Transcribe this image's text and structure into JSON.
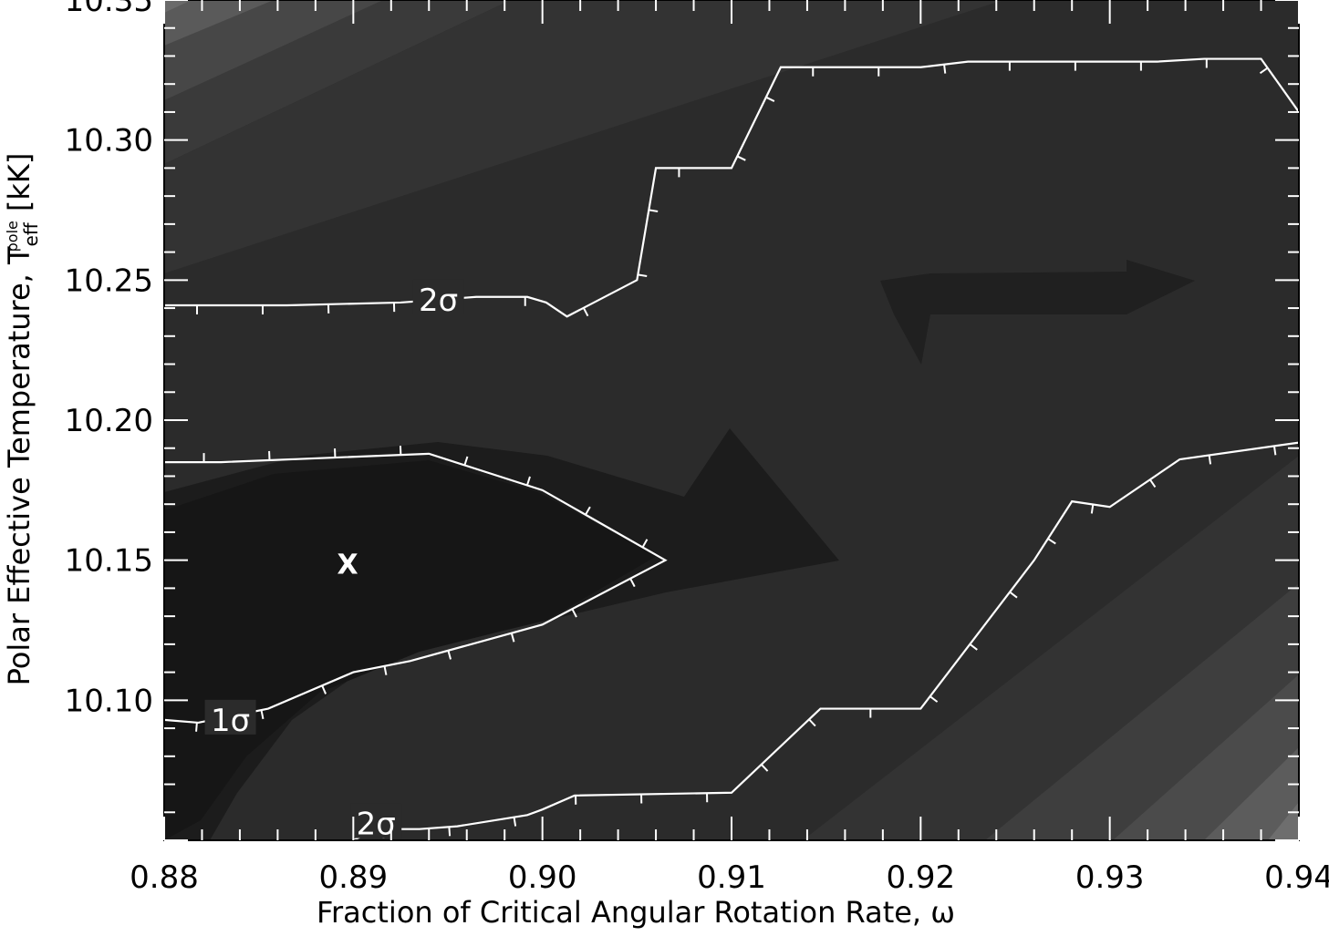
{
  "chart_data": {
    "type": "contour",
    "xlabel": "Fraction of Critical Angular Rotation Rate, ω",
    "ylabel": "Polar Effective Temperature, T_eff^pole [kK]",
    "ylabel_parts": {
      "main": "Polar Effective Temperature, T",
      "sub": "eff",
      "sup": "pole",
      "unit": "[kK]"
    },
    "xlim": [
      0.88,
      0.94
    ],
    "ylim": [
      10.05,
      10.35
    ],
    "x_ticks": [
      0.88,
      0.89,
      0.9,
      0.91,
      0.92,
      0.93,
      0.94
    ],
    "x_tick_labels": [
      "0.88",
      "0.89",
      "0.90",
      "0.91",
      "0.92",
      "0.93",
      "0.94"
    ],
    "y_ticks": [
      10.1,
      10.15,
      10.2,
      10.25,
      10.3,
      10.35
    ],
    "y_tick_labels": [
      "10.10",
      "10.15",
      "10.20",
      "10.25",
      "10.30",
      "10.35"
    ],
    "grid": false,
    "colormap": "grayscale (darker = lower chi-square)",
    "best_fit": {
      "label": "X",
      "x": 0.8897,
      "y": 10.149
    },
    "contours": [
      {
        "name": "1σ",
        "label": "1σ",
        "label_at": [
          0.8835,
          10.093
        ],
        "points": [
          [
            0.88,
            10.093
          ],
          [
            0.8818,
            10.092
          ],
          [
            0.8855,
            10.097
          ],
          [
            0.89,
            10.11
          ],
          [
            0.893,
            10.114
          ],
          [
            0.9,
            10.127
          ],
          [
            0.9065,
            10.15
          ],
          [
            0.9,
            10.175
          ],
          [
            0.894,
            10.188
          ],
          [
            0.883,
            10.185
          ],
          [
            0.88,
            10.185
          ]
        ]
      },
      {
        "name": "2σ upper",
        "label": "2σ",
        "label_at": [
          0.8945,
          10.243
        ],
        "points": [
          [
            0.88,
            10.241
          ],
          [
            0.8865,
            10.241
          ],
          [
            0.8925,
            10.242
          ],
          [
            0.8965,
            10.244
          ],
          [
            0.8992,
            10.244
          ],
          [
            0.9002,
            10.242
          ],
          [
            0.9013,
            10.237
          ],
          [
            0.905,
            10.25
          ],
          [
            0.906,
            10.29
          ],
          [
            0.91,
            10.29
          ],
          [
            0.9126,
            10.326
          ],
          [
            0.92,
            10.326
          ],
          [
            0.9225,
            10.328
          ],
          [
            0.9325,
            10.328
          ],
          [
            0.935,
            10.329
          ],
          [
            0.938,
            10.329
          ],
          [
            0.94,
            10.31
          ]
        ]
      },
      {
        "name": "2σ lower",
        "label": "2σ",
        "label_at": [
          0.8912,
          10.056
        ],
        "points": [
          [
            0.89,
            10.05
          ],
          [
            0.8912,
            10.054
          ],
          [
            0.8935,
            10.054
          ],
          [
            0.8955,
            10.055
          ],
          [
            0.8992,
            10.059
          ],
          [
            0.9,
            10.061
          ],
          [
            0.9017,
            10.066
          ],
          [
            0.91,
            10.067
          ],
          [
            0.9147,
            10.097
          ],
          [
            0.92,
            10.097
          ],
          [
            0.926,
            10.15
          ],
          [
            0.928,
            10.171
          ],
          [
            0.93,
            10.169
          ],
          [
            0.9337,
            10.186
          ],
          [
            0.94,
            10.192
          ]
        ]
      }
    ]
  }
}
